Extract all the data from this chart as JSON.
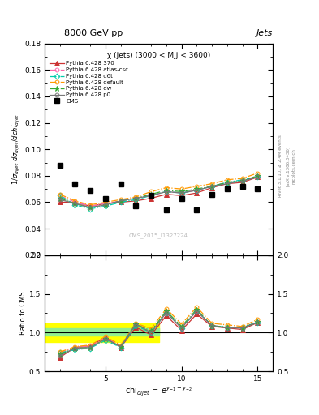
{
  "title_top": "8000 GeV pp",
  "title_right": "Jets",
  "plot_title": "χ (jets) (3000 < Mjj < 3600)",
  "watermark": "CMS_2015_I1327224",
  "rivet_text": "Rivet 3.1.10, ≥ 2.4M events",
  "arxiv_text": "[arXiv:1306.3436]",
  "mcplots_text": "mcplots.cern.ch",
  "ylabel_main": "1/σ$_{dijet}$ dσ$_{dijet}$/dchi$_{dijet}$",
  "ylabel_ratio": "Ratio to CMS",
  "xlabel": "chi$_{dijet}$ = e$^{y_{-1}-y_{-2}}$",
  "ylim_main": [
    0.02,
    0.18
  ],
  "ylim_ratio": [
    0.5,
    2.0
  ],
  "xlim": [
    1,
    16
  ],
  "cms_x": [
    2,
    3,
    4,
    5,
    6,
    7,
    8,
    9,
    10,
    11,
    12,
    13,
    14,
    15
  ],
  "cms_y": [
    0.088,
    0.074,
    0.069,
    0.063,
    0.074,
    0.057,
    0.065,
    0.054,
    0.063,
    0.054,
    0.066,
    0.07,
    0.072,
    0.07
  ],
  "series": [
    {
      "label": "Pythia 6.428 370",
      "color": "#cc3333",
      "marker": "^",
      "linestyle": "-",
      "x": [
        2,
        3,
        4,
        5,
        6,
        7,
        8,
        9,
        10,
        11,
        12,
        13,
        14,
        15
      ],
      "y": [
        0.06,
        0.06,
        0.057,
        0.059,
        0.06,
        0.061,
        0.063,
        0.066,
        0.065,
        0.067,
        0.071,
        0.074,
        0.075,
        0.079
      ]
    },
    {
      "label": "Pythia 6.428 atlas-csc",
      "color": "#ff66aa",
      "marker": "o",
      "linestyle": "-.",
      "x": [
        2,
        3,
        4,
        5,
        6,
        7,
        8,
        9,
        10,
        11,
        12,
        13,
        14,
        15
      ],
      "y": [
        0.065,
        0.06,
        0.057,
        0.059,
        0.061,
        0.063,
        0.065,
        0.068,
        0.067,
        0.069,
        0.072,
        0.075,
        0.076,
        0.08
      ]
    },
    {
      "label": "Pythia 6.428 d6t",
      "color": "#00ccaa",
      "marker": "D",
      "linestyle": "-.",
      "x": [
        2,
        3,
        4,
        5,
        6,
        7,
        8,
        9,
        10,
        11,
        12,
        13,
        14,
        15
      ],
      "y": [
        0.065,
        0.058,
        0.055,
        0.057,
        0.06,
        0.062,
        0.065,
        0.068,
        0.067,
        0.069,
        0.072,
        0.075,
        0.077,
        0.079
      ]
    },
    {
      "label": "Pythia 6.428 default",
      "color": "#ff9900",
      "marker": "o",
      "linestyle": "-.",
      "x": [
        2,
        3,
        4,
        5,
        6,
        7,
        8,
        9,
        10,
        11,
        12,
        13,
        14,
        15
      ],
      "y": [
        0.066,
        0.061,
        0.058,
        0.06,
        0.062,
        0.064,
        0.068,
        0.071,
        0.07,
        0.072,
        0.074,
        0.077,
        0.078,
        0.082
      ]
    },
    {
      "label": "Pythia 6.428 dw",
      "color": "#33aa33",
      "marker": "*",
      "linestyle": "-.",
      "x": [
        2,
        3,
        4,
        5,
        6,
        7,
        8,
        9,
        10,
        11,
        12,
        13,
        14,
        15
      ],
      "y": [
        0.063,
        0.059,
        0.056,
        0.058,
        0.061,
        0.063,
        0.066,
        0.069,
        0.068,
        0.07,
        0.072,
        0.075,
        0.076,
        0.08
      ]
    },
    {
      "label": "Pythia 6.428 p0",
      "color": "#777777",
      "marker": "o",
      "linestyle": "-",
      "x": [
        2,
        3,
        4,
        5,
        6,
        7,
        8,
        9,
        10,
        11,
        12,
        13,
        14,
        15
      ],
      "y": [
        0.062,
        0.059,
        0.056,
        0.058,
        0.061,
        0.063,
        0.065,
        0.068,
        0.067,
        0.069,
        0.072,
        0.074,
        0.076,
        0.079
      ]
    }
  ],
  "ratio_series": [
    {
      "label": "Pythia 6.428 370",
      "color": "#cc3333",
      "marker": "^",
      "linestyle": "-",
      "x": [
        2,
        3,
        4,
        5,
        6,
        7,
        8,
        9,
        10,
        11,
        12,
        13,
        14,
        15
      ],
      "y": [
        0.68,
        0.81,
        0.83,
        0.94,
        0.81,
        1.07,
        0.97,
        1.22,
        1.03,
        1.24,
        1.08,
        1.06,
        1.04,
        1.13
      ]
    },
    {
      "label": "Pythia 6.428 atlas-csc",
      "color": "#ff66aa",
      "marker": "o",
      "linestyle": "-.",
      "x": [
        2,
        3,
        4,
        5,
        6,
        7,
        8,
        9,
        10,
        11,
        12,
        13,
        14,
        15
      ],
      "y": [
        0.74,
        0.81,
        0.83,
        0.94,
        0.82,
        1.11,
        1.0,
        1.26,
        1.06,
        1.28,
        1.09,
        1.07,
        1.06,
        1.14
      ]
    },
    {
      "label": "Pythia 6.428 d6t",
      "color": "#00ccaa",
      "marker": "D",
      "linestyle": "-.",
      "x": [
        2,
        3,
        4,
        5,
        6,
        7,
        8,
        9,
        10,
        11,
        12,
        13,
        14,
        15
      ],
      "y": [
        0.74,
        0.78,
        0.8,
        0.9,
        0.81,
        1.09,
        1.0,
        1.26,
        1.06,
        1.28,
        1.09,
        1.07,
        1.07,
        1.13
      ]
    },
    {
      "label": "Pythia 6.428 default",
      "color": "#ff9900",
      "marker": "o",
      "linestyle": "-.",
      "x": [
        2,
        3,
        4,
        5,
        6,
        7,
        8,
        9,
        10,
        11,
        12,
        13,
        14,
        15
      ],
      "y": [
        0.75,
        0.82,
        0.84,
        0.95,
        0.84,
        1.12,
        1.05,
        1.31,
        1.11,
        1.33,
        1.12,
        1.1,
        1.08,
        1.17
      ]
    },
    {
      "label": "Pythia 6.428 dw",
      "color": "#33aa33",
      "marker": "*",
      "linestyle": "-.",
      "x": [
        2,
        3,
        4,
        5,
        6,
        7,
        8,
        9,
        10,
        11,
        12,
        13,
        14,
        15
      ],
      "y": [
        0.72,
        0.8,
        0.81,
        0.92,
        0.82,
        1.11,
        1.02,
        1.28,
        1.08,
        1.3,
        1.09,
        1.07,
        1.06,
        1.14
      ]
    },
    {
      "label": "Pythia 6.428 p0",
      "color": "#777777",
      "marker": "o",
      "linestyle": "-",
      "x": [
        2,
        3,
        4,
        5,
        6,
        7,
        8,
        9,
        10,
        11,
        12,
        13,
        14,
        15
      ],
      "y": [
        0.7,
        0.8,
        0.81,
        0.92,
        0.82,
        1.11,
        1.0,
        1.26,
        1.06,
        1.28,
        1.09,
        1.06,
        1.06,
        1.13
      ]
    }
  ],
  "band_sys_lo": 0.88,
  "band_sys_hi": 1.12,
  "band_stat_lo": 0.96,
  "band_stat_hi": 1.06,
  "band_x_end": 8.5
}
